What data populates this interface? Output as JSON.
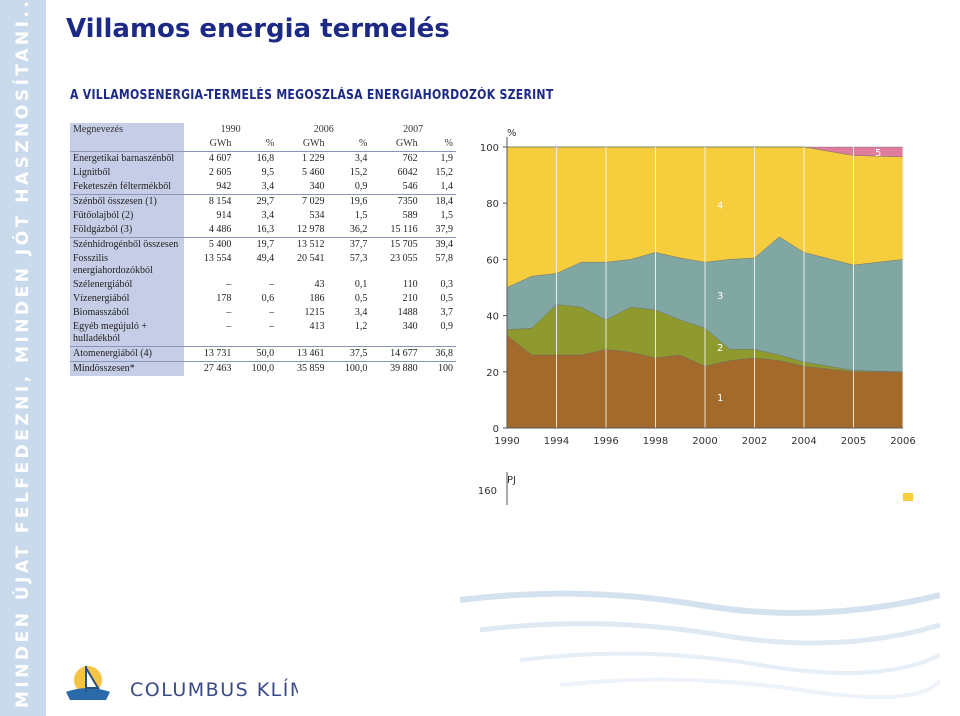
{
  "sidebar": {
    "text": "MINDEN ÚJAT FELFEDEZNI, MINDEN JÓT HASZNOSÍTANI..."
  },
  "header": {
    "title": "Villamos energia termelés",
    "subtitle": "A VILLAMOSENERGIA-TERMELÉS MEGOSZLÁSA ENERGIAHORDOZÓK SZERINT"
  },
  "table": {
    "header": [
      "Megnevezés",
      "1990",
      "2006",
      "2007"
    ],
    "subheader": [
      "GWh",
      "%",
      "GWh",
      "%",
      "GWh",
      "%"
    ],
    "rows": [
      [
        "Energetikai barnaszénből",
        "4 607",
        "16,8",
        "1 229",
        "3,4",
        "762",
        "1,9"
      ],
      [
        "Lignitből",
        "2 605",
        "9,5",
        "5 460",
        "15,2",
        "6042",
        "15,2"
      ],
      [
        "Feketeszén féltermékből",
        "942",
        "3,4",
        "340",
        "0,9",
        "546",
        "1,4"
      ],
      [
        "Szénből összesen (1)",
        "8 154",
        "29,7",
        "7 029",
        "19,6",
        "7350",
        "18,4"
      ],
      [
        "Fűtőolajból (2)",
        "914",
        "3,4",
        "534",
        "1,5",
        "589",
        "1,5"
      ],
      [
        "Földgázból (3)",
        "4 486",
        "16,3",
        "12 978",
        "36,2",
        "15 116",
        "37,9"
      ],
      [
        "Szénhidrogénből összesen",
        "5 400",
        "19,7",
        "13 512",
        "37,7",
        "15 705",
        "39,4"
      ],
      [
        "Fosszilis energiahordozókból",
        "13 554",
        "49,4",
        "20 541",
        "57,3",
        "23 055",
        "57,8"
      ],
      [
        "Szélenergiából",
        "–",
        "–",
        "43",
        "0,1",
        "110",
        "0,3"
      ],
      [
        "Vízenergiából",
        "178",
        "0,6",
        "186",
        "0,5",
        "210",
        "0,5"
      ],
      [
        "Biomasszából",
        "–",
        "–",
        "1215",
        "3,4",
        "1488",
        "3,7"
      ],
      [
        "Egyéb megújuló + hulladékból",
        "–",
        "–",
        "413",
        "1,2",
        "340",
        "0,9"
      ],
      [
        "Atomenergiából (4)",
        "13 731",
        "50,0",
        "13 461",
        "37,5",
        "14 677",
        "36,8"
      ],
      [
        "Mindösszesen*",
        "27 463",
        "100,0",
        "35 859",
        "100,0",
        "39 880",
        "100"
      ]
    ]
  },
  "chart_data": {
    "type": "stacked_area",
    "y_label": "%",
    "categories": [
      "1990",
      null,
      "1994",
      null,
      "1996",
      null,
      "1998",
      null,
      "2000",
      null,
      "2002",
      null,
      "2004",
      "2005",
      "2006"
    ],
    "series": [
      {
        "name": "1",
        "color": "#a36a2b",
        "values": [
          33,
          26,
          26,
          26,
          28,
          27,
          25,
          26,
          22,
          24,
          25,
          24,
          22,
          20,
          20
        ]
      },
      {
        "name": "2",
        "color": "#8f9a2e",
        "values": [
          2,
          9.5,
          18,
          17,
          10.5,
          16,
          17,
          12.5,
          13.5,
          4,
          3,
          2,
          1.5,
          0.5,
          0
        ]
      },
      {
        "name": "3",
        "color": "#80a7a2",
        "values": [
          15,
          18.5,
          11,
          16,
          20.5,
          17,
          20.5,
          22,
          23.5,
          32,
          32.5,
          42,
          39,
          37.5,
          40
        ]
      },
      {
        "name": "4",
        "color": "#f5cd3d",
        "values": [
          50,
          46,
          45,
          41,
          41,
          40,
          37.5,
          39.5,
          41,
          40,
          39.5,
          32,
          37.5,
          39,
          36.5
        ]
      },
      {
        "name": "5",
        "color": "#de7d9c",
        "values": [
          0,
          0,
          0,
          0,
          0,
          0,
          0,
          0,
          0,
          0,
          0,
          0,
          0,
          3,
          3.5
        ]
      }
    ],
    "ylim": [
      0,
      100
    ],
    "yticks": [
      0,
      20,
      40,
      60,
      80,
      100
    ],
    "grid": true,
    "second_panel": {
      "y_label": "PJ",
      "ytick": "160"
    }
  }
}
